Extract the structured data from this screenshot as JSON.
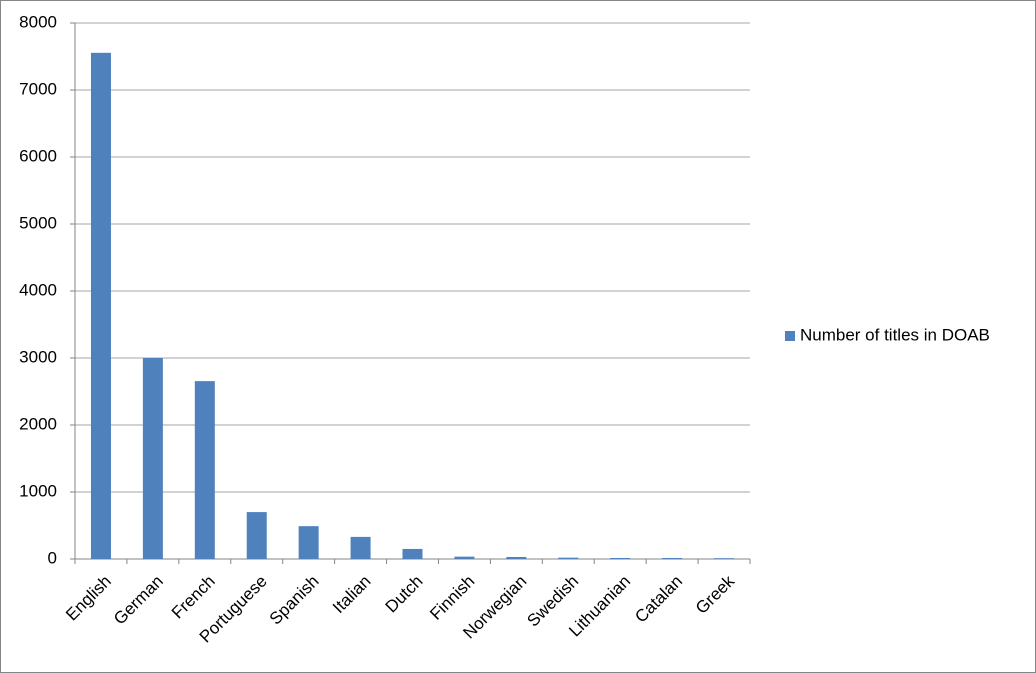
{
  "chart_data": {
    "type": "bar",
    "categories": [
      "English",
      "German",
      "French",
      "Portuguese",
      "Spanish",
      "Italian",
      "Dutch",
      "Finnish",
      "Norwegian",
      "Swedish",
      "Lithuanian",
      "Catalan",
      "Greek"
    ],
    "series": [
      {
        "name": "Number of titles in DOAB",
        "color": "#4f81bd",
        "values": [
          7555,
          3000,
          2655,
          700,
          490,
          330,
          150,
          35,
          30,
          20,
          15,
          15,
          12
        ]
      }
    ],
    "ylim": [
      0,
      8000
    ],
    "yticks": [
      0,
      1000,
      2000,
      3000,
      4000,
      5000,
      6000,
      7000,
      8000
    ],
    "grid": true,
    "legend": "right"
  }
}
